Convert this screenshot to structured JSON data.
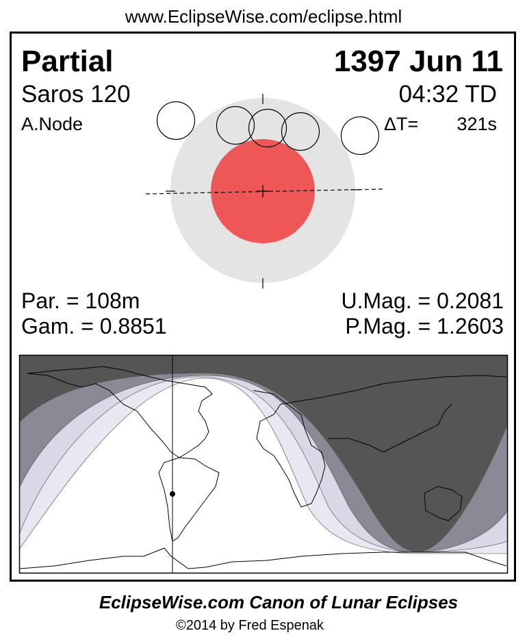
{
  "url": "www.EclipseWise.com/eclipse.html",
  "eclipse_type": "Partial",
  "date": "1397 Jun 11",
  "saros": "Saros 120",
  "time": "04:32 TD",
  "node": "A.Node",
  "delta_t_label": "ΔT=",
  "delta_t_value": "321s",
  "partial_duration": "Par. = 108m",
  "gamma": "Gam. = 0.8851",
  "umbral_magnitude": "U.Mag. = 0.2081",
  "penumbral_magnitude": "P.Mag. = 1.2603",
  "footer_title": "EclipseWise.com Canon of Lunar Eclipses",
  "copyright": "©2014 by Fred Espenak",
  "colors": {
    "umbra": "#ef5656",
    "penumbra": "#e4e4e4",
    "night": "#555555",
    "band_dark": "#8a8a96",
    "band_mid": "#d8d8e6",
    "band_light": "#e8e8f2"
  }
}
